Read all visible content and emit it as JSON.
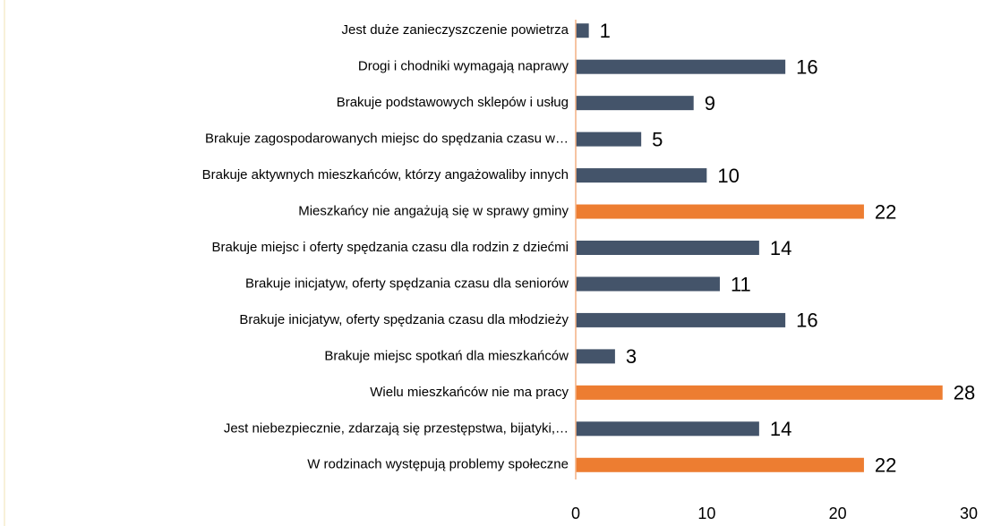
{
  "chart_data": {
    "type": "barh",
    "categories": [
      "Jest duże zanieczyszczenie powietrza",
      "Drogi i chodniki wymagają naprawy",
      "Brakuje podstawowych sklepów i usług",
      "Brakuje zagospodarowanych miejsc do spędzania czasu w…",
      "Brakuje aktywnych mieszkańców, którzy angażowaliby innych",
      "Mieszkańcy nie angażują się w sprawy gminy",
      "Brakuje miejsc i oferty spędzania czasu dla rodzin z dziećmi",
      "Brakuje inicjatyw, oferty spędzania czasu dla seniorów",
      "Brakuje inicjatyw, oferty spędzania czasu dla młodzieży",
      "Brakuje miejsc spotkań dla mieszkańców",
      "Wielu mieszkańców nie ma pracy",
      "Jest niebezpiecznie, zdarzają się przestępstwa, bijatyki,…",
      "W rodzinach występują problemy społeczne"
    ],
    "values": [
      1,
      16,
      9,
      5,
      10,
      22,
      14,
      11,
      16,
      3,
      28,
      14,
      22
    ],
    "colors": [
      "#44546a",
      "#44546a",
      "#44546a",
      "#44546a",
      "#44546a",
      "#ed7d31",
      "#44546a",
      "#44546a",
      "#44546a",
      "#44546a",
      "#ed7d31",
      "#44546a",
      "#ed7d31"
    ],
    "axis_color": "#f4b183",
    "xlim": [
      0,
      30
    ],
    "xticks": [
      0,
      10,
      20,
      30
    ],
    "grid": false
  }
}
